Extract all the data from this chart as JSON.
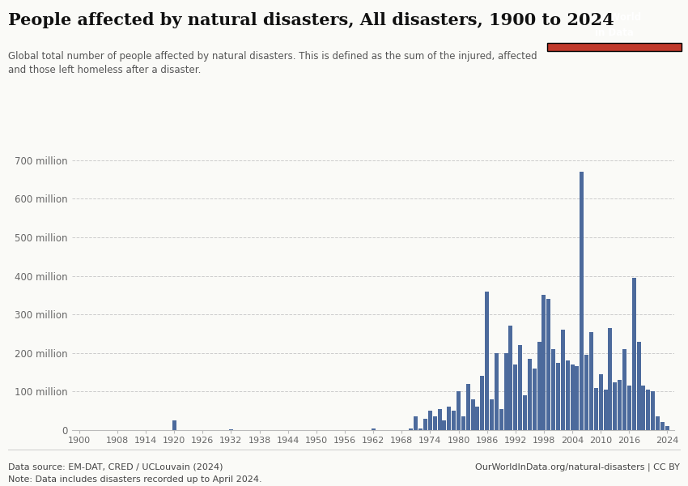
{
  "title": "People affected by natural disasters, All disasters, 1900 to 2024",
  "subtitle": "Global total number of people affected by natural disasters. This is defined as the sum of the injured, affected\nand those left homeless after a disaster.",
  "datasource": "Data source: EM-DAT, CRED / UCLouvain (2024)",
  "note": "Note: Data includes disasters recorded up to April 2024.",
  "url": "OurWorldInData.org/natural-disasters | CC BY",
  "bar_color": "#4C6A9C",
  "background_color": "#FAFAF7",
  "years": [
    1900,
    1901,
    1902,
    1903,
    1904,
    1905,
    1906,
    1907,
    1908,
    1909,
    1910,
    1911,
    1912,
    1913,
    1914,
    1915,
    1916,
    1917,
    1918,
    1919,
    1920,
    1921,
    1922,
    1923,
    1924,
    1925,
    1926,
    1927,
    1928,
    1929,
    1930,
    1931,
    1932,
    1933,
    1934,
    1935,
    1936,
    1937,
    1938,
    1939,
    1940,
    1941,
    1942,
    1943,
    1944,
    1945,
    1946,
    1947,
    1948,
    1949,
    1950,
    1951,
    1952,
    1953,
    1954,
    1955,
    1956,
    1957,
    1958,
    1959,
    1960,
    1961,
    1962,
    1963,
    1964,
    1965,
    1966,
    1967,
    1968,
    1969,
    1970,
    1971,
    1972,
    1973,
    1974,
    1975,
    1976,
    1977,
    1978,
    1979,
    1980,
    1981,
    1982,
    1983,
    1984,
    1985,
    1986,
    1987,
    1988,
    1989,
    1990,
    1991,
    1992,
    1993,
    1994,
    1995,
    1996,
    1997,
    1998,
    1999,
    2000,
    2001,
    2002,
    2003,
    2004,
    2005,
    2006,
    2007,
    2008,
    2009,
    2010,
    2011,
    2012,
    2013,
    2014,
    2015,
    2016,
    2017,
    2018,
    2019,
    2020,
    2021,
    2022,
    2023,
    2024
  ],
  "values": [
    0,
    0,
    0,
    0,
    0,
    0,
    0,
    0,
    0,
    0,
    0,
    0,
    0,
    0,
    0,
    0,
    0,
    0,
    0,
    0,
    25000000,
    0,
    0,
    0,
    0,
    0,
    0,
    0,
    0,
    0,
    0,
    0,
    2000000,
    0,
    0,
    0,
    0,
    0,
    0,
    0,
    0,
    0,
    0,
    0,
    0,
    0,
    0,
    0,
    0,
    0,
    0,
    0,
    0,
    0,
    0,
    0,
    0,
    0,
    0,
    0,
    0,
    0,
    5000000,
    0,
    0,
    0,
    0,
    0,
    0,
    0,
    5000000,
    35000000,
    5000000,
    30000000,
    50000000,
    35000000,
    55000000,
    25000000,
    60000000,
    50000000,
    100000000,
    35000000,
    120000000,
    80000000,
    60000000,
    140000000,
    360000000,
    80000000,
    200000000,
    55000000,
    200000000,
    270000000,
    170000000,
    220000000,
    90000000,
    185000000,
    160000000,
    230000000,
    350000000,
    340000000,
    210000000,
    175000000,
    260000000,
    180000000,
    170000000,
    165000000,
    670000000,
    195000000,
    255000000,
    110000000,
    145000000,
    105000000,
    265000000,
    125000000,
    130000000,
    210000000,
    115000000,
    395000000,
    230000000,
    115000000,
    105000000,
    100000000,
    35000000,
    20000000,
    10000000
  ],
  "ylim": [
    0,
    750000000
  ],
  "yticks": [
    0,
    100000000,
    200000000,
    300000000,
    400000000,
    500000000,
    600000000,
    700000000
  ],
  "ytick_labels": [
    "0",
    "100 million",
    "200 million",
    "300 million",
    "400 million",
    "500 million",
    "600 million",
    "700 million"
  ],
  "xticks": [
    1900,
    1908,
    1914,
    1920,
    1926,
    1932,
    1938,
    1944,
    1950,
    1956,
    1962,
    1968,
    1974,
    1980,
    1986,
    1992,
    1998,
    2004,
    2010,
    2016,
    2024
  ],
  "grid_color": "#CCCCCC",
  "owid_box_color": "#1a3a5c",
  "owid_red": "#C0392B"
}
